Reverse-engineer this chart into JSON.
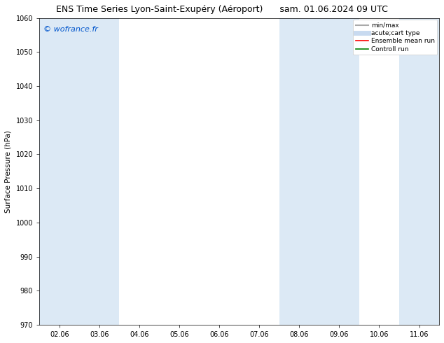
{
  "title_left": "ENS Time Series Lyon-Saint-Exupéry (Aéroport)",
  "title_right": "sam. 01.06.2024 09 UTC",
  "ylabel": "Surface Pressure (hPa)",
  "ylim": [
    970,
    1060
  ],
  "yticks": [
    970,
    980,
    990,
    1000,
    1010,
    1020,
    1030,
    1040,
    1050,
    1060
  ],
  "xtick_labels": [
    "02.06",
    "03.06",
    "04.06",
    "05.06",
    "06.06",
    "07.06",
    "08.06",
    "09.06",
    "10.06",
    "11.06"
  ],
  "xtick_positions": [
    0,
    1,
    2,
    3,
    4,
    5,
    6,
    7,
    8,
    9
  ],
  "xlim": [
    -0.5,
    9.5
  ],
  "shaded_bands": [
    {
      "x_start": -0.5,
      "x_end": 0.5
    },
    {
      "x_start": 0.5,
      "x_end": 1.5
    },
    {
      "x_start": 5.5,
      "x_end": 6.5
    },
    {
      "x_start": 6.5,
      "x_end": 7.5
    },
    {
      "x_start": 8.5,
      "x_end": 9.5
    }
  ],
  "band_color": "#dce9f5",
  "band_alpha": 1.0,
  "copyright_text": "© wofrance.fr",
  "copyright_color": "#0055cc",
  "copyright_fontsize": 8,
  "legend_entries": [
    {
      "label": "min/max",
      "color": "#aaaaaa",
      "lw": 1.5,
      "type": "line"
    },
    {
      "label": "acute;cart type",
      "color": "#c8daf0",
      "lw": 5,
      "type": "line"
    },
    {
      "label": "Ensemble mean run",
      "color": "red",
      "lw": 1.2,
      "type": "line"
    },
    {
      "label": "Controll run",
      "color": "green",
      "lw": 1.2,
      "type": "line"
    }
  ],
  "bg_color": "#ffffff",
  "title_fontsize": 9,
  "axis_label_fontsize": 7.5,
  "tick_fontsize": 7
}
